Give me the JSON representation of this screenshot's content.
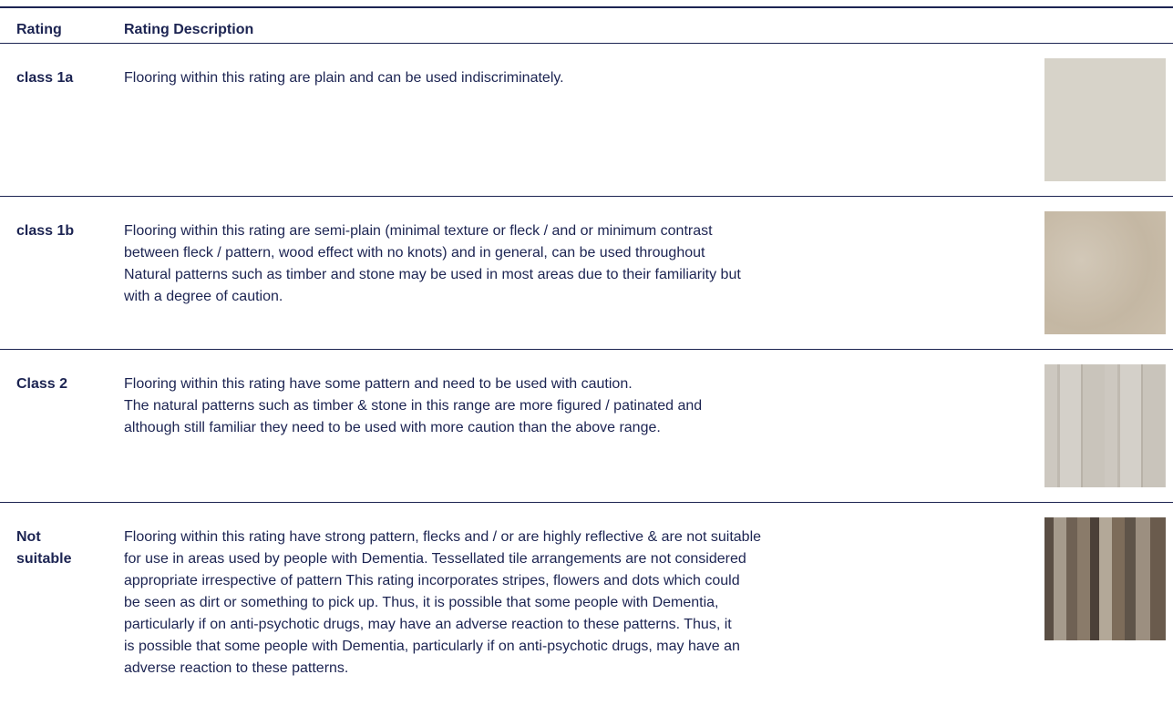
{
  "table": {
    "header": [
      "Rating",
      "Rating Description"
    ],
    "rows": [
      {
        "rating": "class 1a",
        "description": [
          "Flooring within this rating are plain and can be used indiscriminately."
        ]
      },
      {
        "rating": "class 1b",
        "description": [
          "Flooring within this rating are semi-plain (minimal texture or fleck / and or minimum contrast",
          "between fleck / pattern, wood effect with no knots) and in general, can be used throughout",
          "Natural patterns such as timber and stone may be used in most areas due to their familiarity but",
          "with a degree of caution."
        ]
      },
      {
        "rating": "Class 2",
        "description": [
          "Flooring within this rating have some pattern and need to be used with caution.",
          "The natural patterns such as timber & stone in this range are more figured / patinated and",
          "although still familiar they need to be used with more caution than the above range."
        ]
      },
      {
        "rating": "Not suitable",
        "description": [
          "Flooring within this rating have strong pattern, flecks and / or are highly reflective & are not suitable",
          "for use in areas used by people with Dementia. Tessellated tile arrangements are not considered",
          "appropriate irrespective of pattern This rating incorporates stripes, flowers and dots which could",
          "be seen as dirt or something to pick up. Thus, it is possible that some people with Dementia,",
          "particularly if on anti-psychotic drugs, may have an adverse reaction to these patterns. Thus, it",
          "is possible that some people with Dementia, particularly if on anti-psychotic drugs, may have an",
          "adverse reaction to these patterns."
        ]
      }
    ]
  }
}
